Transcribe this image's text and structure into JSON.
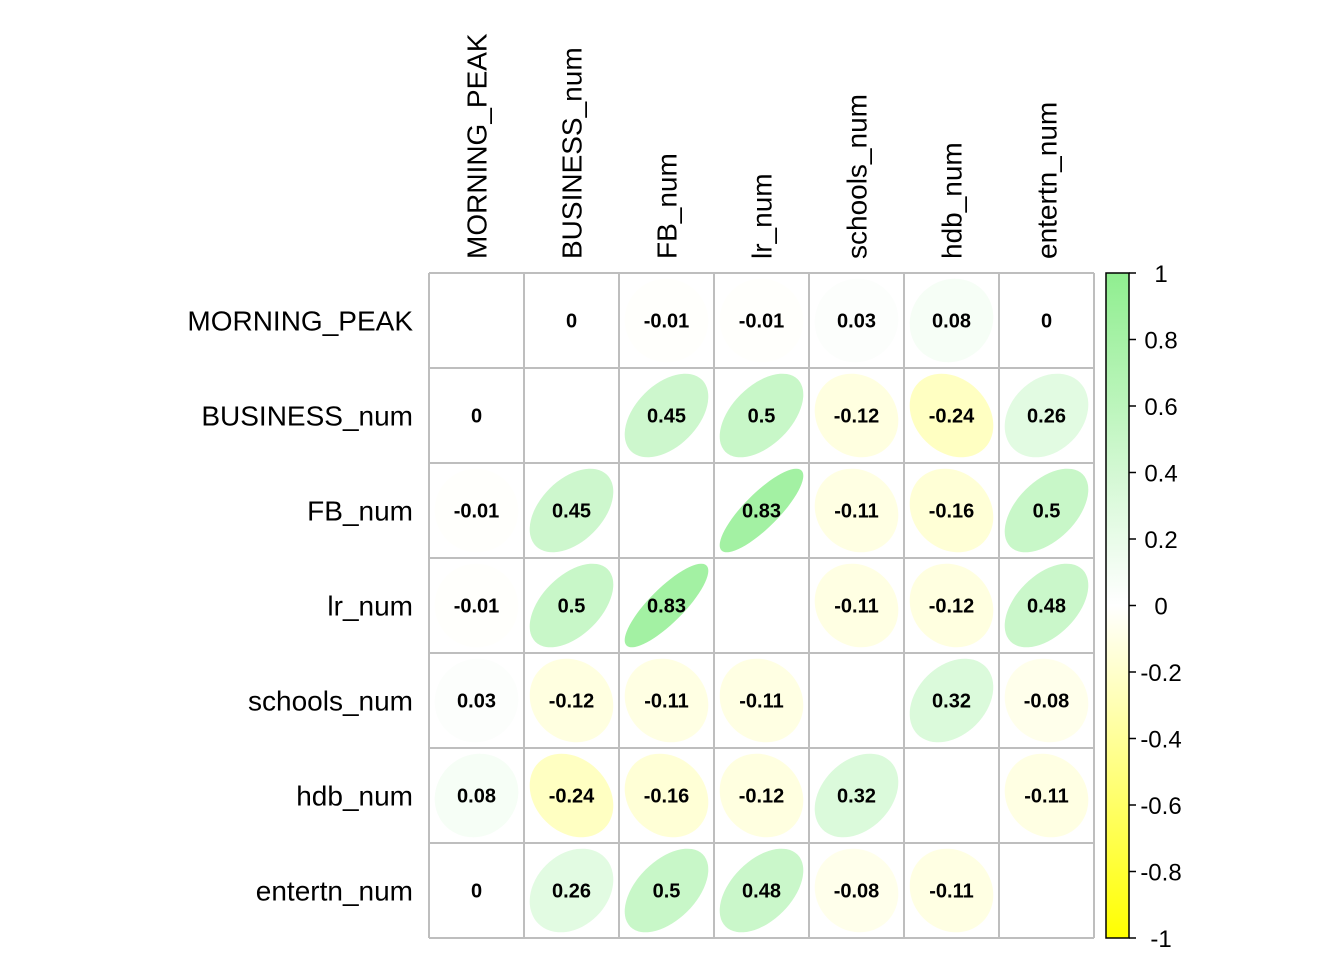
{
  "chart_data": {
    "type": "heatmap",
    "variables": [
      "MORNING_PEAK",
      "BUSINESS_num",
      "FB_num",
      "lr_num",
      "schools_num",
      "hdb_num",
      "entertn_num"
    ],
    "matrix": [
      [
        null,
        "0",
        "-0.01",
        "-0.01",
        "0.03",
        "0.08",
        "0"
      ],
      [
        "0",
        null,
        "0.45",
        "0.5",
        "-0.12",
        "-0.24",
        "0.26"
      ],
      [
        "-0.01",
        "0.45",
        null,
        "0.83",
        "-0.11",
        "-0.16",
        "0.5"
      ],
      [
        "-0.01",
        "0.5",
        "0.83",
        null,
        "-0.11",
        "-0.12",
        "0.48"
      ],
      [
        "0.03",
        "-0.12",
        "-0.11",
        "-0.11",
        null,
        "0.32",
        "-0.08"
      ],
      [
        "0.08",
        "-0.24",
        "-0.16",
        "-0.12",
        "0.32",
        null,
        "-0.11"
      ],
      [
        "0",
        "0.26",
        "0.5",
        "0.48",
        "-0.08",
        "-0.11",
        null
      ]
    ],
    "color_scale": {
      "min": -1,
      "max": 1,
      "low_color": "#ffff00",
      "mid_color": "#ffffff",
      "high_color": "#90ee90",
      "ticks": [
        "1",
        "0.8",
        "0.6",
        "0.4",
        "0.2",
        "0",
        "-0.2",
        "-0.4",
        "-0.6",
        "-0.8",
        "-1"
      ]
    },
    "grid_color": "#bebebe",
    "legend_position": "right"
  }
}
